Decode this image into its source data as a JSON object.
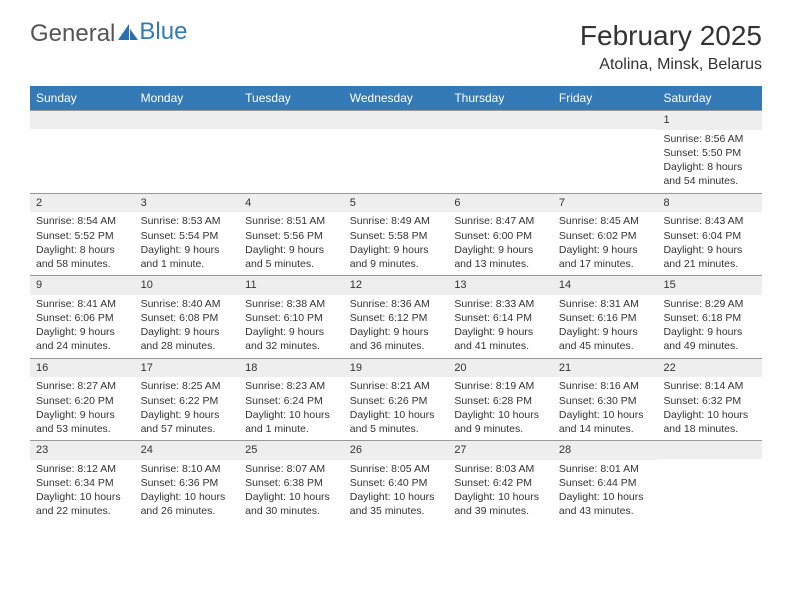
{
  "brand": {
    "word1": "General",
    "word2": "Blue",
    "icon_color": "#2a6fb0"
  },
  "header": {
    "month_title": "February 2025",
    "location": "Atolina, Minsk, Belarus"
  },
  "colors": {
    "header_bg": "#337ab7",
    "header_text": "#ffffff",
    "daynum_bg": "#eeeeee",
    "border": "#999999",
    "text": "#333333"
  },
  "weekdays": [
    "Sunday",
    "Monday",
    "Tuesday",
    "Wednesday",
    "Thursday",
    "Friday",
    "Saturday"
  ],
  "weeks": [
    [
      {
        "n": "",
        "sunrise": "",
        "sunset": "",
        "daylight": ""
      },
      {
        "n": "",
        "sunrise": "",
        "sunset": "",
        "daylight": ""
      },
      {
        "n": "",
        "sunrise": "",
        "sunset": "",
        "daylight": ""
      },
      {
        "n": "",
        "sunrise": "",
        "sunset": "",
        "daylight": ""
      },
      {
        "n": "",
        "sunrise": "",
        "sunset": "",
        "daylight": ""
      },
      {
        "n": "",
        "sunrise": "",
        "sunset": "",
        "daylight": ""
      },
      {
        "n": "1",
        "sunrise": "Sunrise: 8:56 AM",
        "sunset": "Sunset: 5:50 PM",
        "daylight": "Daylight: 8 hours and 54 minutes."
      }
    ],
    [
      {
        "n": "2",
        "sunrise": "Sunrise: 8:54 AM",
        "sunset": "Sunset: 5:52 PM",
        "daylight": "Daylight: 8 hours and 58 minutes."
      },
      {
        "n": "3",
        "sunrise": "Sunrise: 8:53 AM",
        "sunset": "Sunset: 5:54 PM",
        "daylight": "Daylight: 9 hours and 1 minute."
      },
      {
        "n": "4",
        "sunrise": "Sunrise: 8:51 AM",
        "sunset": "Sunset: 5:56 PM",
        "daylight": "Daylight: 9 hours and 5 minutes."
      },
      {
        "n": "5",
        "sunrise": "Sunrise: 8:49 AM",
        "sunset": "Sunset: 5:58 PM",
        "daylight": "Daylight: 9 hours and 9 minutes."
      },
      {
        "n": "6",
        "sunrise": "Sunrise: 8:47 AM",
        "sunset": "Sunset: 6:00 PM",
        "daylight": "Daylight: 9 hours and 13 minutes."
      },
      {
        "n": "7",
        "sunrise": "Sunrise: 8:45 AM",
        "sunset": "Sunset: 6:02 PM",
        "daylight": "Daylight: 9 hours and 17 minutes."
      },
      {
        "n": "8",
        "sunrise": "Sunrise: 8:43 AM",
        "sunset": "Sunset: 6:04 PM",
        "daylight": "Daylight: 9 hours and 21 minutes."
      }
    ],
    [
      {
        "n": "9",
        "sunrise": "Sunrise: 8:41 AM",
        "sunset": "Sunset: 6:06 PM",
        "daylight": "Daylight: 9 hours and 24 minutes."
      },
      {
        "n": "10",
        "sunrise": "Sunrise: 8:40 AM",
        "sunset": "Sunset: 6:08 PM",
        "daylight": "Daylight: 9 hours and 28 minutes."
      },
      {
        "n": "11",
        "sunrise": "Sunrise: 8:38 AM",
        "sunset": "Sunset: 6:10 PM",
        "daylight": "Daylight: 9 hours and 32 minutes."
      },
      {
        "n": "12",
        "sunrise": "Sunrise: 8:36 AM",
        "sunset": "Sunset: 6:12 PM",
        "daylight": "Daylight: 9 hours and 36 minutes."
      },
      {
        "n": "13",
        "sunrise": "Sunrise: 8:33 AM",
        "sunset": "Sunset: 6:14 PM",
        "daylight": "Daylight: 9 hours and 41 minutes."
      },
      {
        "n": "14",
        "sunrise": "Sunrise: 8:31 AM",
        "sunset": "Sunset: 6:16 PM",
        "daylight": "Daylight: 9 hours and 45 minutes."
      },
      {
        "n": "15",
        "sunrise": "Sunrise: 8:29 AM",
        "sunset": "Sunset: 6:18 PM",
        "daylight": "Daylight: 9 hours and 49 minutes."
      }
    ],
    [
      {
        "n": "16",
        "sunrise": "Sunrise: 8:27 AM",
        "sunset": "Sunset: 6:20 PM",
        "daylight": "Daylight: 9 hours and 53 minutes."
      },
      {
        "n": "17",
        "sunrise": "Sunrise: 8:25 AM",
        "sunset": "Sunset: 6:22 PM",
        "daylight": "Daylight: 9 hours and 57 minutes."
      },
      {
        "n": "18",
        "sunrise": "Sunrise: 8:23 AM",
        "sunset": "Sunset: 6:24 PM",
        "daylight": "Daylight: 10 hours and 1 minute."
      },
      {
        "n": "19",
        "sunrise": "Sunrise: 8:21 AM",
        "sunset": "Sunset: 6:26 PM",
        "daylight": "Daylight: 10 hours and 5 minutes."
      },
      {
        "n": "20",
        "sunrise": "Sunrise: 8:19 AM",
        "sunset": "Sunset: 6:28 PM",
        "daylight": "Daylight: 10 hours and 9 minutes."
      },
      {
        "n": "21",
        "sunrise": "Sunrise: 8:16 AM",
        "sunset": "Sunset: 6:30 PM",
        "daylight": "Daylight: 10 hours and 14 minutes."
      },
      {
        "n": "22",
        "sunrise": "Sunrise: 8:14 AM",
        "sunset": "Sunset: 6:32 PM",
        "daylight": "Daylight: 10 hours and 18 minutes."
      }
    ],
    [
      {
        "n": "23",
        "sunrise": "Sunrise: 8:12 AM",
        "sunset": "Sunset: 6:34 PM",
        "daylight": "Daylight: 10 hours and 22 minutes."
      },
      {
        "n": "24",
        "sunrise": "Sunrise: 8:10 AM",
        "sunset": "Sunset: 6:36 PM",
        "daylight": "Daylight: 10 hours and 26 minutes."
      },
      {
        "n": "25",
        "sunrise": "Sunrise: 8:07 AM",
        "sunset": "Sunset: 6:38 PM",
        "daylight": "Daylight: 10 hours and 30 minutes."
      },
      {
        "n": "26",
        "sunrise": "Sunrise: 8:05 AM",
        "sunset": "Sunset: 6:40 PM",
        "daylight": "Daylight: 10 hours and 35 minutes."
      },
      {
        "n": "27",
        "sunrise": "Sunrise: 8:03 AM",
        "sunset": "Sunset: 6:42 PM",
        "daylight": "Daylight: 10 hours and 39 minutes."
      },
      {
        "n": "28",
        "sunrise": "Sunrise: 8:01 AM",
        "sunset": "Sunset: 6:44 PM",
        "daylight": "Daylight: 10 hours and 43 minutes."
      },
      {
        "n": "",
        "sunrise": "",
        "sunset": "",
        "daylight": ""
      }
    ]
  ]
}
